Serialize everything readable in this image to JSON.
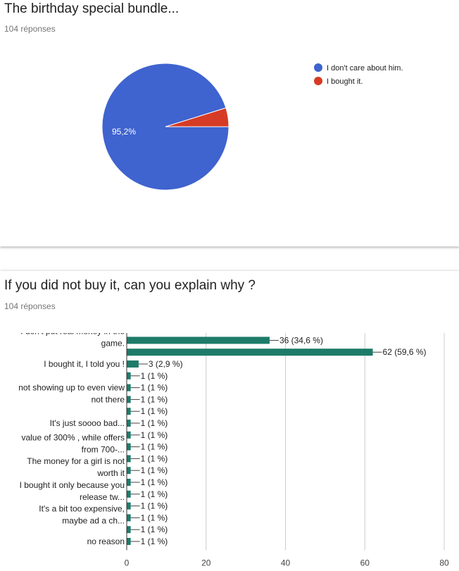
{
  "survey1": {
    "title": "The birthday special bundle...",
    "responses": "104 réponses"
  },
  "survey2": {
    "title": "If you did not buy it, can you explain why ?",
    "responses": "104 réponses"
  },
  "colors": {
    "blue": "#3f63cf",
    "red": "#d63b25",
    "bar": "#1e7b69"
  },
  "chart_data": [
    {
      "type": "pie",
      "slices": [
        {
          "label": "I don't care about him.",
          "value": 95.2,
          "display": "95,2%",
          "color": "#3f63cf"
        },
        {
          "label": "I bought it.",
          "value": 4.8,
          "display": "",
          "color": "#d63b25"
        }
      ],
      "legend_position": "right"
    },
    {
      "type": "bar",
      "orientation": "horizontal",
      "xlim": [
        0,
        80
      ],
      "xticks": [
        "0",
        "20",
        "40",
        "60",
        "80"
      ],
      "grid": true,
      "rows": [
        {
          "label": [
            "I don't put real money in the",
            "game."
          ],
          "value": 36,
          "display": "36 (34,6 %)"
        },
        {
          "label": [],
          "value": 62,
          "display": "62 (59,6 %)"
        },
        {
          "label": [
            "I bought it, I told you !"
          ],
          "value": 3,
          "display": "3 (2,9 %)"
        },
        {
          "label": [],
          "value": 1,
          "display": "1 (1 %)"
        },
        {
          "label": [
            "not showing up to even view"
          ],
          "value": 1,
          "display": "1 (1 %)"
        },
        {
          "label": [
            "not there"
          ],
          "value": 1,
          "display": "1 (1 %)"
        },
        {
          "label": [],
          "value": 1,
          "display": "1 (1 %)"
        },
        {
          "label": [
            "It's just soooo bad..."
          ],
          "value": 1,
          "display": "1 (1 %)"
        },
        {
          "label": [],
          "value": 1,
          "display": "1 (1 %)"
        },
        {
          "label": [
            "value of 300% , while offers",
            "from 700-..."
          ],
          "value": 1,
          "display": "1 (1 %)"
        },
        {
          "label": [],
          "value": 1,
          "display": "1 (1 %)"
        },
        {
          "label": [
            "The money for a girl is not",
            "worth it"
          ],
          "value": 1,
          "display": "1 (1 %)"
        },
        {
          "label": [],
          "value": 1,
          "display": "1 (1 %)"
        },
        {
          "label": [
            "I bought it only because you",
            "release tw..."
          ],
          "value": 1,
          "display": "1 (1 %)"
        },
        {
          "label": [],
          "value": 1,
          "display": "1 (1 %)"
        },
        {
          "label": [
            "It's a bit too expensive,",
            "maybe ad a ch..."
          ],
          "value": 1,
          "display": "1 (1 %)"
        },
        {
          "label": [],
          "value": 1,
          "display": "1 (1 %)"
        },
        {
          "label": [
            "no reason"
          ],
          "value": 1,
          "display": "1 (1 %)"
        }
      ]
    }
  ]
}
